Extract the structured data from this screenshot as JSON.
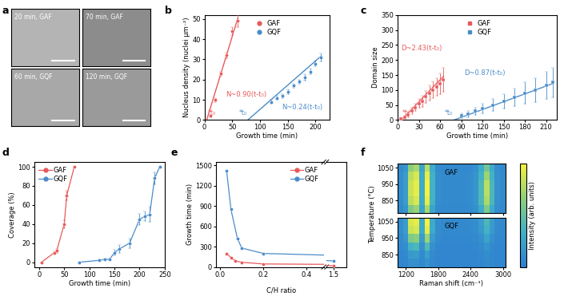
{
  "chart_data": [
    {
      "panel": "a",
      "type": "image_grid",
      "images": [
        {
          "label": "20 min, GAF"
        },
        {
          "label": "70 min, GAF"
        },
        {
          "label": "60 min, GQF"
        },
        {
          "label": "120 min, GQF"
        }
      ]
    },
    {
      "panel": "b",
      "type": "scatter",
      "xlabel": "Growth time (min)",
      "ylabel": "Nucleus density (nuclei μm⁻²)",
      "xlim": [
        0,
        225
      ],
      "ylim": [
        0,
        52
      ],
      "xticks": [
        0,
        50,
        100,
        150,
        200
      ],
      "yticks": [
        0,
        10,
        20,
        30,
        40,
        50
      ],
      "legend": "upper center",
      "series": [
        {
          "name": "GAF",
          "color": "#e8595b",
          "marker": "circle",
          "line_style": "none",
          "x": [
            10,
            20,
            30,
            40,
            50,
            60
          ],
          "values": [
            2,
            10,
            23,
            32,
            44,
            49
          ],
          "errors": [
            0.5,
            1,
            1,
            1.5,
            2,
            3
          ],
          "fit": {
            "x": [
              4,
              60
            ],
            "values": [
              0,
              50.4
            ],
            "label": "N~0.90(t-t₀)",
            "start_label": "*t₀"
          }
        },
        {
          "name": "GQF",
          "color": "#4a8cc9",
          "marker": "circle",
          "line_style": "none",
          "x": [
            120,
            130,
            140,
            150,
            160,
            170,
            180,
            190,
            200,
            210
          ],
          "values": [
            9,
            11,
            12,
            14,
            17,
            19,
            21,
            24,
            28,
            31
          ],
          "errors": [
            1,
            1,
            1,
            1,
            1,
            1,
            1.5,
            1.5,
            1.5,
            2
          ],
          "fit": {
            "x": [
              78,
              210
            ],
            "values": [
              0,
              31.68
            ],
            "label": "N~0.24(t-t₀)",
            "start_label": "*t₀"
          }
        }
      ]
    },
    {
      "panel": "c",
      "type": "scatter",
      "xlabel": "Growth time (min)",
      "ylabel": "Domain size",
      "xlim": [
        0,
        225
      ],
      "ylim": [
        0,
        350
      ],
      "xticks": [
        0,
        30,
        60,
        90,
        120,
        150,
        180,
        210
      ],
      "yticks": [
        0,
        50,
        100,
        150,
        200,
        250,
        300,
        350
      ],
      "legend": "upper center",
      "series": [
        {
          "name": "GAF",
          "color": "#e8595b",
          "marker": "square",
          "line_style": "none",
          "x": [
            5,
            10,
            15,
            20,
            25,
            30,
            35,
            40,
            45,
            50,
            55,
            60,
            65
          ],
          "values": [
            5,
            10,
            18,
            30,
            42,
            55,
            62,
            78,
            90,
            100,
            110,
            120,
            135
          ],
          "errors": [
            3,
            5,
            8,
            10,
            12,
            15,
            18,
            20,
            25,
            28,
            30,
            35,
            40
          ],
          "fit": {
            "x": [
              5,
              65
            ],
            "values": [
              0,
              145.8
            ],
            "label": "D~2.43(t-t₀)",
            "start_label": "*t₀"
          }
        },
        {
          "name": "GQF",
          "color": "#4a8cc9",
          "marker": "square",
          "line_style": "none",
          "x": [
            90,
            100,
            110,
            120,
            135,
            150,
            165,
            180,
            195,
            210,
            220
          ],
          "values": [
            15,
            20,
            30,
            38,
            50,
            62,
            75,
            90,
            100,
            115,
            125
          ],
          "errors": [
            8,
            10,
            12,
            15,
            20,
            25,
            30,
            35,
            40,
            45,
            50
          ],
          "fit": {
            "x": [
              80,
              220
            ],
            "values": [
              0,
              121.8
            ],
            "label": "D~0.87(t-t₀)",
            "start_label": "*t₀"
          }
        }
      ]
    },
    {
      "panel": "d",
      "type": "line",
      "xlabel": "Growth time (min)",
      "ylabel": "Coverage (%)",
      "xlim": [
        -10,
        250
      ],
      "ylim": [
        -5,
        105
      ],
      "xticks": [
        0,
        50,
        100,
        150,
        200,
        250
      ],
      "yticks": [
        0,
        20,
        40,
        60,
        80,
        100
      ],
      "legend": "upper left",
      "series": [
        {
          "name": "GAF",
          "color": "#e8595b",
          "marker": "circle",
          "line_style": "solid",
          "x": [
            5,
            30,
            35,
            50,
            55,
            70
          ],
          "values": [
            0,
            10,
            12,
            40,
            70,
            100
          ],
          "errors": [
            0,
            1,
            2,
            4,
            5,
            0
          ]
        },
        {
          "name": "GQF",
          "color": "#4a8cc9",
          "marker": "circle",
          "line_style": "solid",
          "x": [
            80,
            120,
            130,
            140,
            150,
            160,
            180,
            200,
            210,
            220,
            230,
            240
          ],
          "values": [
            0,
            2,
            3,
            3,
            10,
            14,
            20,
            45,
            48,
            50,
            88,
            100
          ],
          "errors": [
            0,
            1,
            1,
            1,
            3,
            4,
            5,
            6,
            5,
            8,
            6,
            0
          ]
        }
      ]
    },
    {
      "panel": "e",
      "type": "line",
      "xlabel": "C/H ratio",
      "ylabel": "Growth time (min)",
      "ylim": [
        0,
        1550
      ],
      "yticks": [
        0,
        300,
        600,
        900,
        1200,
        1500
      ],
      "legend": "upper right",
      "segments": [
        {
          "xlim": [
            -0.02,
            0.48
          ],
          "xticks": [
            {
              "value": 0,
              "label": "0.0"
            },
            0.2,
            0.4
          ]
        },
        {
          "xlim": [
            1.45,
            1.6
          ],
          "xticks": [
            1.5
          ]
        }
      ],
      "series": [
        {
          "name": "GAF",
          "color": "#e8595b",
          "marker": "circle",
          "line_style": "solid",
          "x": [
            0.03,
            0.05,
            0.07,
            0.1,
            0.2,
            1.5
          ],
          "values": [
            200,
            140,
            90,
            70,
            45,
            20
          ]
        },
        {
          "name": "GQF",
          "color": "#4a8cc9",
          "marker": "circle",
          "line_style": "solid",
          "x": [
            0.03,
            0.05,
            0.08,
            0.1,
            0.2,
            1.5
          ],
          "values": [
            1420,
            850,
            420,
            280,
            200,
            90
          ]
        }
      ]
    },
    {
      "panel": "f",
      "type": "heatmap",
      "xlabel": "Raman shift (cm⁻¹)",
      "ylabel": "Temperature (°C)",
      "x": [
        1100,
        1200,
        1300,
        1400,
        1500,
        1600,
        1700,
        1800,
        1900,
        2000,
        2100,
        2200,
        2300,
        2400,
        2500,
        2600,
        2700,
        2800,
        2900,
        3000
      ],
      "y": [
        800,
        850,
        900,
        950,
        1000,
        1050
      ],
      "xlim": [
        1050,
        3050
      ],
      "ylim": [
        775,
        1075
      ],
      "xticks": [
        1200,
        1800,
        2400,
        3000
      ],
      "yticks": [
        850,
        950,
        1050
      ],
      "maps": [
        {
          "name": "GAF",
          "cells": [
            [
              0.08,
              0.15,
              0.6,
              0.7,
              0.25,
              0.75,
              0.25,
              0.08,
              0.07,
              0.07,
              0.07,
              0.07,
              0.07,
              0.08,
              0.12,
              0.3,
              0.6,
              0.3,
              0.1,
              0.07
            ],
            [
              0.1,
              0.2,
              0.8,
              0.9,
              0.3,
              0.95,
              0.35,
              0.1,
              0.08,
              0.08,
              0.08,
              0.08,
              0.08,
              0.1,
              0.15,
              0.4,
              0.75,
              0.4,
              0.12,
              0.08
            ],
            [
              0.1,
              0.2,
              0.85,
              0.95,
              0.3,
              1.0,
              0.35,
              0.1,
              0.08,
              0.08,
              0.08,
              0.08,
              0.08,
              0.1,
              0.15,
              0.4,
              0.8,
              0.4,
              0.12,
              0.08
            ],
            [
              0.1,
              0.2,
              0.85,
              0.95,
              0.3,
              1.0,
              0.35,
              0.1,
              0.08,
              0.08,
              0.08,
              0.08,
              0.08,
              0.1,
              0.15,
              0.4,
              0.8,
              0.4,
              0.12,
              0.08
            ],
            [
              0.1,
              0.2,
              0.8,
              0.9,
              0.3,
              0.95,
              0.35,
              0.1,
              0.08,
              0.08,
              0.08,
              0.08,
              0.08,
              0.1,
              0.15,
              0.35,
              0.7,
              0.35,
              0.12,
              0.08
            ],
            [
              0.08,
              0.15,
              0.65,
              0.75,
              0.25,
              0.8,
              0.3,
              0.08,
              0.07,
              0.07,
              0.07,
              0.07,
              0.07,
              0.08,
              0.12,
              0.3,
              0.55,
              0.3,
              0.1,
              0.07
            ]
          ]
        },
        {
          "name": "GQF",
          "cells": [
            [
              0.05,
              0.06,
              0.12,
              0.12,
              0.07,
              0.14,
              0.07,
              0.05,
              0.05,
              0.05,
              0.05,
              0.05,
              0.05,
              0.05,
              0.05,
              0.06,
              0.08,
              0.06,
              0.05,
              0.05
            ],
            [
              0.05,
              0.07,
              0.18,
              0.2,
              0.08,
              0.22,
              0.08,
              0.05,
              0.05,
              0.05,
              0.05,
              0.05,
              0.05,
              0.05,
              0.05,
              0.07,
              0.1,
              0.07,
              0.05,
              0.05
            ],
            [
              0.06,
              0.1,
              0.35,
              0.4,
              0.12,
              0.42,
              0.12,
              0.06,
              0.05,
              0.05,
              0.05,
              0.05,
              0.05,
              0.05,
              0.06,
              0.08,
              0.15,
              0.08,
              0.05,
              0.05
            ],
            [
              0.08,
              0.15,
              0.6,
              0.65,
              0.2,
              0.7,
              0.2,
              0.08,
              0.06,
              0.06,
              0.06,
              0.06,
              0.06,
              0.06,
              0.08,
              0.12,
              0.25,
              0.12,
              0.06,
              0.06
            ],
            [
              0.1,
              0.2,
              0.85,
              0.9,
              0.3,
              0.95,
              0.3,
              0.1,
              0.07,
              0.07,
              0.07,
              0.07,
              0.07,
              0.08,
              0.1,
              0.18,
              0.35,
              0.18,
              0.08,
              0.07
            ],
            [
              0.1,
              0.2,
              0.9,
              0.95,
              0.3,
              1.0,
              0.3,
              0.1,
              0.07,
              0.07,
              0.07,
              0.07,
              0.07,
              0.08,
              0.1,
              0.2,
              0.4,
              0.2,
              0.08,
              0.07
            ]
          ]
        }
      ],
      "colorbar": {
        "label": "Intensity (arb. units)",
        "range": [
          0,
          1
        ],
        "tick_labels": false
      }
    }
  ]
}
